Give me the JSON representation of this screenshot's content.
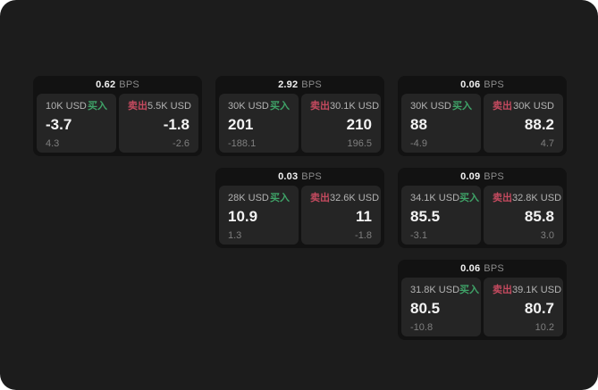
{
  "labels": {
    "bps": "BPS",
    "buy": "买入",
    "sell": "卖出"
  },
  "colors": {
    "page_bg": "#1c1c1c",
    "card_bg": "#121212",
    "panel_bg": "#252525",
    "buy": "#3fa368",
    "sell": "#c44a5f"
  },
  "cards": [
    {
      "bps": "0.62",
      "row": 1,
      "col": 1,
      "buy": {
        "amount": "10K USD",
        "value": "-3.7",
        "sub": "4.3"
      },
      "sell": {
        "amount": "5.5K USD",
        "value": "-1.8",
        "sub": "-2.6"
      }
    },
    {
      "bps": "2.92",
      "row": 1,
      "col": 2,
      "buy": {
        "amount": "30K USD",
        "value": "201",
        "sub": "-188.1"
      },
      "sell": {
        "amount": "30.1K USD",
        "value": "210",
        "sub": "196.5"
      }
    },
    {
      "bps": "0.06",
      "row": 1,
      "col": 3,
      "buy": {
        "amount": "30K USD",
        "value": "88",
        "sub": "-4.9"
      },
      "sell": {
        "amount": "30K USD",
        "value": "88.2",
        "sub": "4.7"
      }
    },
    {
      "bps": "0.03",
      "row": 2,
      "col": 2,
      "buy": {
        "amount": "28K USD",
        "value": "10.9",
        "sub": "1.3"
      },
      "sell": {
        "amount": "32.6K USD",
        "value": "11",
        "sub": "-1.8"
      }
    },
    {
      "bps": "0.09",
      "row": 2,
      "col": 3,
      "buy": {
        "amount": "34.1K USD",
        "value": "85.5",
        "sub": "-3.1"
      },
      "sell": {
        "amount": "32.8K USD",
        "value": "85.8",
        "sub": "3.0"
      }
    },
    {
      "bps": "0.06",
      "row": 3,
      "col": 3,
      "buy": {
        "amount": "31.8K USD",
        "value": "80.5",
        "sub": "-10.8"
      },
      "sell": {
        "amount": "39.1K USD",
        "value": "80.7",
        "sub": "10.2"
      }
    }
  ]
}
